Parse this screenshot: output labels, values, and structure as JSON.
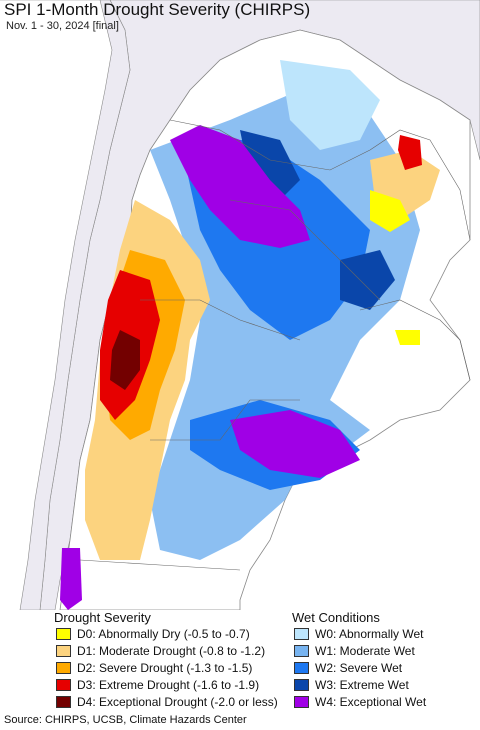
{
  "header": {
    "title": "SPI 1-Month Drought Severity (CHIRPS)",
    "subtitle": "Nov. 1 - 30, 2024 [final]"
  },
  "legend": {
    "drought_title": "Drought Severity",
    "wet_title": "Wet Conditions",
    "drought_items": [
      {
        "label": "D0: Abnormally Dry (-0.5 to -0.7)",
        "color": "#ffff00"
      },
      {
        "label": "D1: Moderate Drought (-0.8 to -1.2)",
        "color": "#fcd37f"
      },
      {
        "label": "D2: Severe Drought (-1.3 to -1.5)",
        "color": "#ffaa00"
      },
      {
        "label": "D3: Extreme Drought (-1.6 to -1.9)",
        "color": "#e60000"
      },
      {
        "label": "D4: Exceptional Drought (-2.0 or less)",
        "color": "#730000"
      }
    ],
    "wet_items": [
      {
        "label": "W0: Abnormally Wet",
        "color": "#bde5fc"
      },
      {
        "label": "W1: Moderate Wet",
        "color": "#78b4f0"
      },
      {
        "label": "W2: Severe Wet",
        "color": "#1e78f0"
      },
      {
        "label": "W3: Extreme Wet",
        "color": "#0a46aa"
      },
      {
        "label": "W4: Exceptional Wet",
        "color": "#a000e6"
      }
    ]
  },
  "footer": {
    "source": "Source: CHIRPS, UCSB, Climate Hazards Center"
  },
  "map": {
    "ocean_color": "#ffffff",
    "outside_land_color": "#eceaf2",
    "border_color": "#888888"
  }
}
